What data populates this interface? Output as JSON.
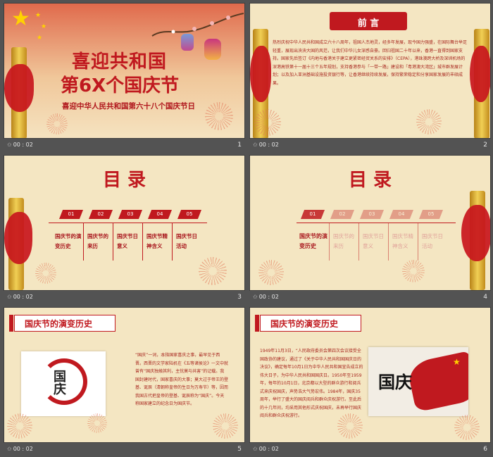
{
  "slides": [
    {
      "number": "1",
      "duration": "00 : 02",
      "title_line1": "喜迎共和国",
      "title_line2": "第6X个国庆节",
      "subtitle": "喜迎中华人民共和国第六十八个国庆节日"
    },
    {
      "number": "2",
      "duration": "00 : 02",
      "heading": "前 言",
      "body": "热烈庆祝中华人民共和国成立六十八周年，祖国人杰地灵，经多年发展，现今国力强盛，在国际舞台举足轻重，展现出泱泱大国的风范，让我们中华儿女深感自豪。回归祖国二十年以来，香港一直得到国家支持。国家先后签订《内地与香港关于建立更紧密经贸关系的安排》（CEPA），港珠澳跨大桥及深圳机场的深港高铁第十一届十三个五年规划，支持香港参与「一带一路」建设和「粤港澳大湾区」城市群发展计划；以及加入亚洲基础设施投资银行等，让香港继续持续发展，保持繁荣稳定和分享国家发展的丰硕成果。"
    },
    {
      "number": "3",
      "duration": "00 : 02",
      "heading": "目 录",
      "items": [
        {
          "tab": "01",
          "label": "国庆节的演变历史"
        },
        {
          "tab": "02",
          "label": "国庆节的来历"
        },
        {
          "tab": "03",
          "label": "国庆节日意义"
        },
        {
          "tab": "04",
          "label": "国庆节精神含义"
        },
        {
          "tab": "05",
          "label": "国庆节日活动"
        }
      ]
    },
    {
      "number": "4",
      "duration": "00 : 02",
      "heading": "目 录",
      "items": [
        {
          "tab": "01",
          "label": "国庆节的演变历史"
        },
        {
          "tab": "02",
          "label": "国庆节的来历"
        },
        {
          "tab": "03",
          "label": "国庆节日意义"
        },
        {
          "tab": "04",
          "label": "国庆节精神含义"
        },
        {
          "tab": "05",
          "label": "国庆节日活动"
        }
      ]
    },
    {
      "number": "5",
      "duration": "00 : 02",
      "heading": "国庆节的演变历史",
      "image_text": "国庆",
      "body": "“国庆”一词，本指国家喜庆之事，最早见于西晋。西晋的文学家陆机在《五等诸侯论》一文中就曾有“国庆独飨其利，主忧莫与共害”的记载。我国封建时代，国家喜庆的大事；莫大过于帝王的登基、诞辰（清朝称皇帝的生日为万寿节）等，因而我国古代把皇帝的登基、诞辰称为“国庆”。今天称国家建立的纪念日为国庆节。"
    },
    {
      "number": "6",
      "duration": "00 : 02",
      "heading": "国庆节的演变历史",
      "image_text": "国庆",
      "body": "1949年11月3日，“人民政府委员会第四次会议接受全国政协的建议，通过了《关于中华人民共和国国庆日的决议》，确定每年10月1日为中华人民共和国宣告成立的伟大日子，为中华人民共和国国庆日。1950年至1959年，每年的10月1日，北京都以大型的群众游行和阅兵式来庆祝国庆，声势浩大气势宏伟。1984年，国庆35周年，举行了盛大的国庆阅兵和群众庆祝游行。至此后的十几年间，均采用其他形式庆祝国庆，未再举行国庆阅兵和群众庆祝游行。"
    }
  ],
  "colors": {
    "accent": "#c0191f",
    "background": "#f4e6c2",
    "gold": "#e5b93f"
  }
}
